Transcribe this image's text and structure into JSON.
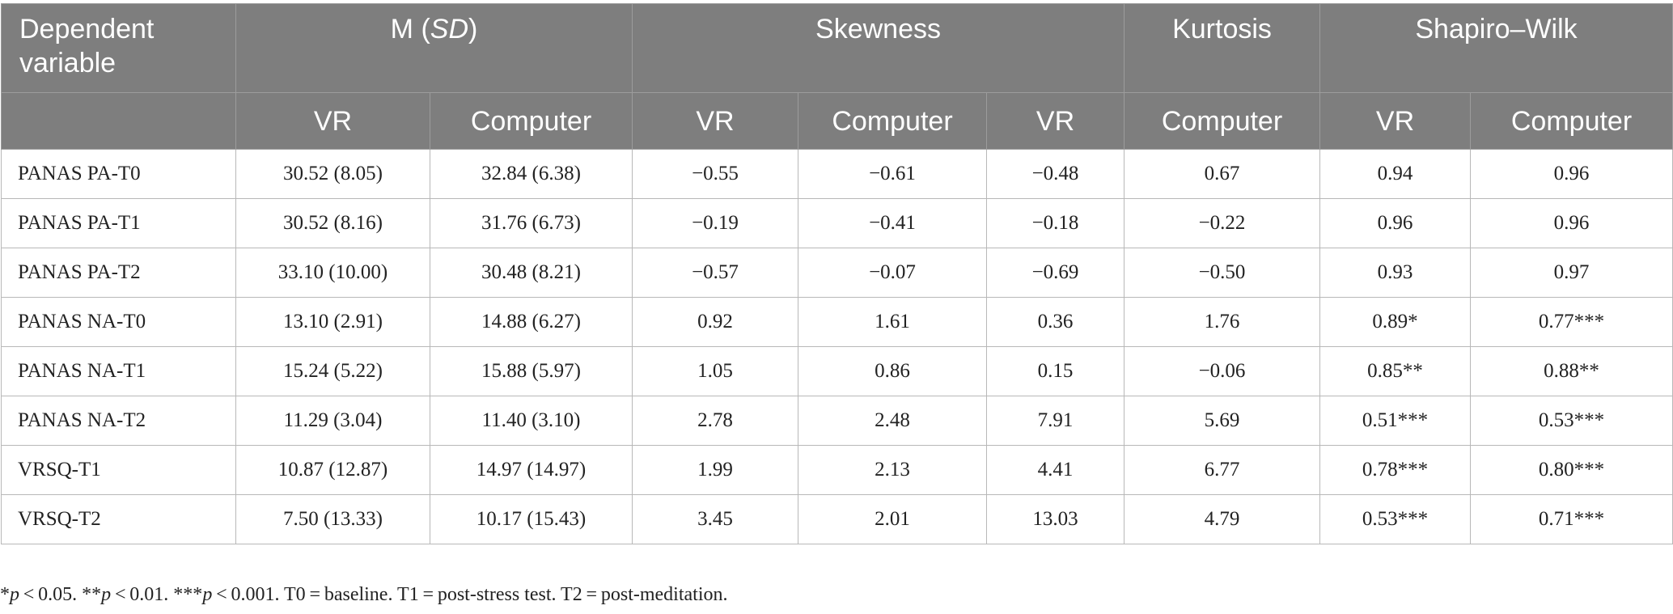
{
  "header": {
    "dependent_variable_line1": "Dependent",
    "dependent_variable_line2": "variable",
    "m_prefix": "M (",
    "m_sd": "SD",
    "m_suffix": ")",
    "skewness": "Skewness",
    "kurtosis": "Kurtosis",
    "shapiro_wilk": "Shapiro–Wilk",
    "sub": [
      "VR",
      "Computer",
      "VR",
      "Computer",
      "VR",
      "Computer",
      "VR",
      "Computer"
    ]
  },
  "rows": [
    {
      "label": "PANAS PA-T0",
      "cells": [
        "30.52 (8.05)",
        "32.84 (6.38)",
        "−0.55",
        "−0.61",
        "−0.48",
        "0.67",
        "0.94",
        "0.96"
      ]
    },
    {
      "label": "PANAS PA-T1",
      "cells": [
        "30.52 (8.16)",
        "31.76 (6.73)",
        "−0.19",
        "−0.41",
        "−0.18",
        "−0.22",
        "0.96",
        "0.96"
      ]
    },
    {
      "label": "PANAS PA-T2",
      "cells": [
        "33.10 (10.00)",
        "30.48 (8.21)",
        "−0.57",
        "−0.07",
        "−0.69",
        "−0.50",
        "0.93",
        "0.97"
      ]
    },
    {
      "label": "PANAS NA-T0",
      "cells": [
        "13.10 (2.91)",
        "14.88 (6.27)",
        "0.92",
        "1.61",
        "0.36",
        "1.76",
        "0.89*",
        "0.77***"
      ]
    },
    {
      "label": "PANAS NA-T1",
      "cells": [
        "15.24 (5.22)",
        "15.88 (5.97)",
        "1.05",
        "0.86",
        "0.15",
        "−0.06",
        "0.85**",
        "0.88**"
      ]
    },
    {
      "label": "PANAS NA-T2",
      "cells": [
        "11.29 (3.04)",
        "11.40 (3.10)",
        "2.78",
        "2.48",
        "7.91",
        "5.69",
        "0.51***",
        "0.53***"
      ]
    },
    {
      "label": "VRSQ-T1",
      "cells": [
        "10.87 (12.87)",
        "14.97 (14.97)",
        "1.99",
        "2.13",
        "4.41",
        "6.77",
        "0.78***",
        "0.80***"
      ]
    },
    {
      "label": "VRSQ-T2",
      "cells": [
        "7.50 (13.33)",
        "10.17 (15.43)",
        "3.45",
        "2.01",
        "13.03",
        "4.79",
        "0.53***",
        "0.71***"
      ]
    }
  ],
  "note": {
    "a1": "*",
    "p": "p",
    "a2": " < 0.05. **",
    "b2": " < 0.01. ***",
    "c2": " < 0.001. T0 = baseline. T1 = post-stress test. T2 = post-meditation."
  }
}
